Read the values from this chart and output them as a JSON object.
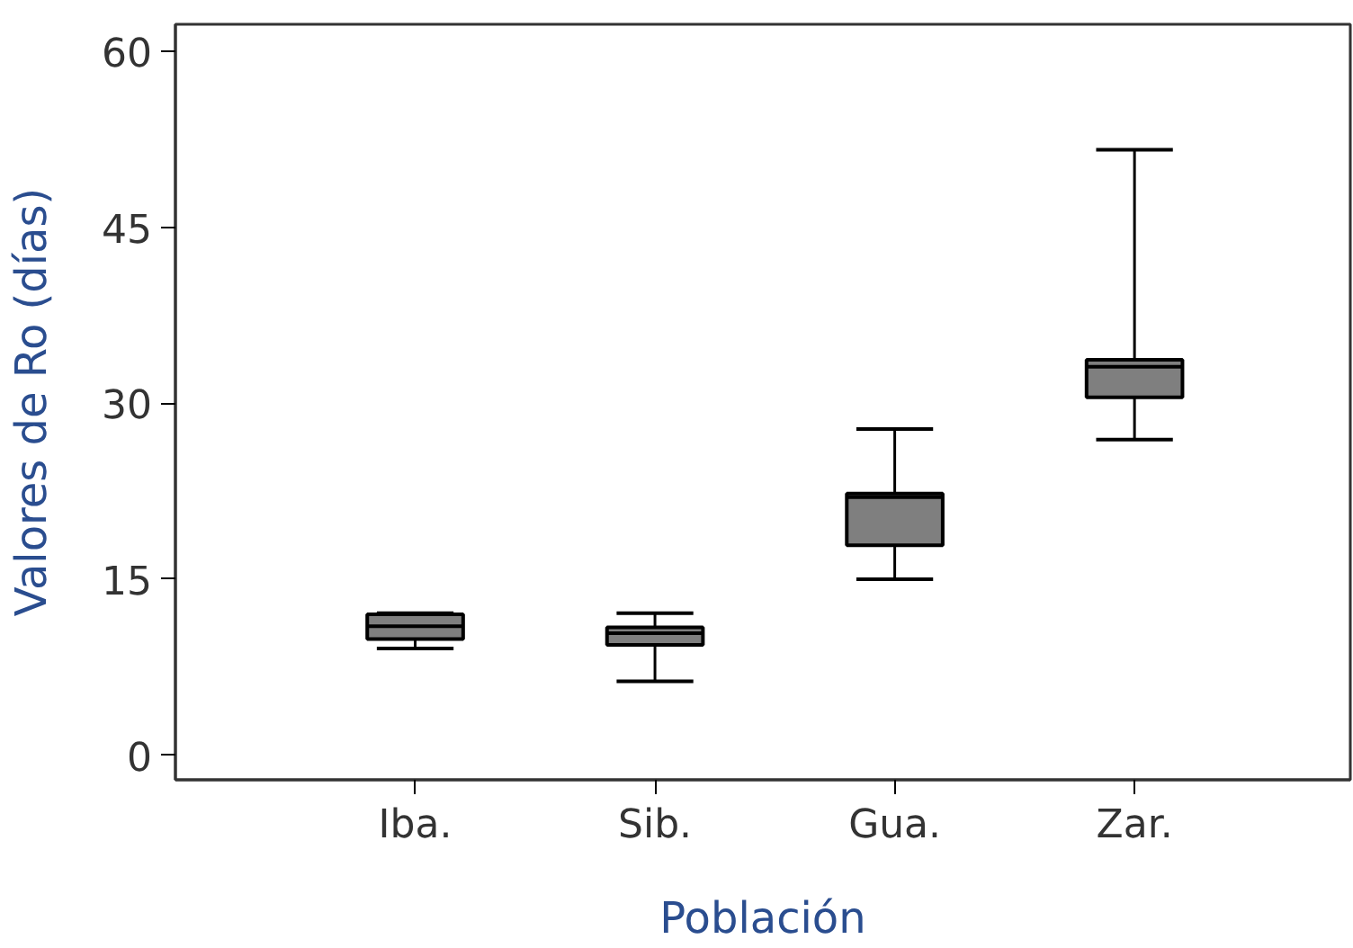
{
  "chart_data": {
    "type": "box",
    "xlabel": "Población",
    "ylabel": "Valores de Ro (días)",
    "categories": [
      "Iba.",
      "Sib.",
      "Gua.",
      "Zar."
    ],
    "ylim": [
      -2.1,
      62.3
    ],
    "yticks": [
      0,
      15,
      30,
      45,
      60
    ],
    "series": [
      {
        "color": "#7f7f7f",
        "boxes": [
          {
            "low": 9.1,
            "q1": 9.9,
            "median": 11.0,
            "q3": 12.0,
            "high": 12.1
          },
          {
            "low": 6.3,
            "q1": 9.4,
            "median": 10.4,
            "q3": 10.9,
            "high": 12.1
          },
          {
            "low": 15.0,
            "q1": 17.9,
            "median": 22.0,
            "q3": 22.3,
            "high": 27.8
          },
          {
            "low": 26.9,
            "q1": 30.5,
            "median": 33.1,
            "q3": 33.7,
            "high": 51.6
          }
        ]
      }
    ]
  }
}
